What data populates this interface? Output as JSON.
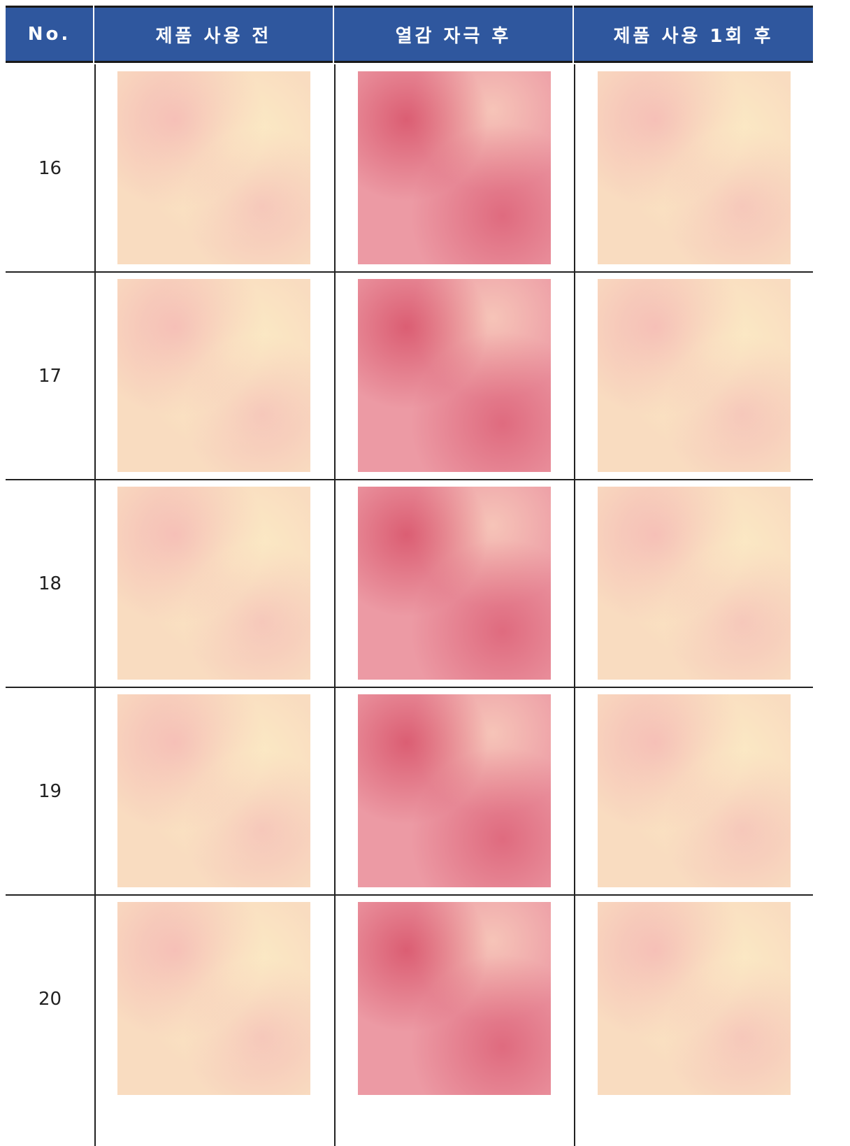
{
  "table": {
    "header": [
      "No.",
      "제품 사용 전",
      "열감 자극 후",
      "제품 사용 1회 후"
    ],
    "rows": [
      [
        "16"
      ],
      [
        "17"
      ],
      [
        "18"
      ],
      [
        "19"
      ],
      [
        "20"
      ]
    ]
  }
}
